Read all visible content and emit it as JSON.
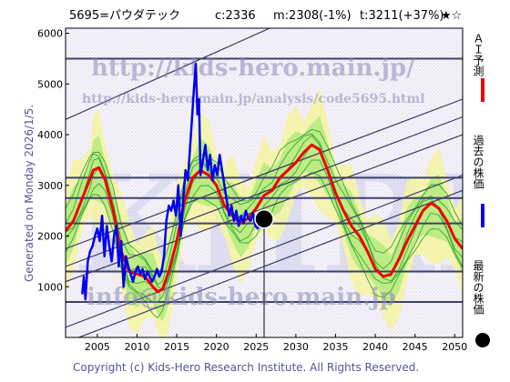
{
  "header": {
    "stock": "5695=パウダテック",
    "current": "c:2336",
    "mean": "m:2308(-1%)",
    "target": "t:3211(+37%)",
    "stars": "★☆"
  },
  "generated": "Generated on Monday 2026/1/5.",
  "copyright": "Copyright (c) Kids-Hero Research Institute. All Rights Reserved.",
  "watermarks": {
    "url1": "http://kids-hero.main.jp/",
    "url2": "http://kids-hero.main.jp/analysis/code5695.html",
    "email": "info@kids-hero.main.jp",
    "big": "KHRI"
  },
  "legend": [
    {
      "label": "ＡＩ予測",
      "color": "#ee0000",
      "kind": "line"
    },
    {
      "label": "過去の株価",
      "color": "#0000ee",
      "kind": "line"
    },
    {
      "label": "最新の株価",
      "color": "#000000",
      "kind": "dot"
    }
  ],
  "chart_data": {
    "type": "line",
    "xlim": [
      2001,
      2051
    ],
    "ylim": [
      0,
      6100
    ],
    "x_ticks": [
      2005,
      2010,
      2015,
      2020,
      2025,
      2030,
      2035,
      2040,
      2045,
      2050
    ],
    "y_ticks": [
      1000,
      2000,
      3000,
      4000,
      5000,
      6000
    ],
    "horizontal_lines": [
      5500,
      3150,
      2750,
      2250,
      1300,
      700
    ],
    "latest": {
      "x": 2026.0,
      "y": 2336
    },
    "series": [
      {
        "name": "AI予測",
        "color": "#ee0000",
        "x": [
          2001,
          2002,
          2003,
          2004,
          2004.5,
          2005.2,
          2006,
          2007,
          2008,
          2009,
          2010,
          2011,
          2012,
          2012.6,
          2013.2,
          2014,
          2015,
          2016,
          2017,
          2018,
          2019,
          2020,
          2021,
          2022,
          2023,
          2024,
          2025,
          2026,
          2027,
          2028,
          2029,
          2030,
          2031,
          2032,
          2033,
          2034,
          2035,
          2036,
          2037,
          2038,
          2039,
          2040,
          2041,
          2042,
          2043,
          2044,
          2045,
          2046,
          2047,
          2048,
          2049,
          2050,
          2051
        ],
        "y": [
          2100,
          2300,
          2700,
          3100,
          3300,
          3350,
          3100,
          2500,
          1700,
          1300,
          1250,
          1200,
          1000,
          900,
          950,
          1300,
          1900,
          2700,
          3150,
          3300,
          3200,
          3000,
          2600,
          2400,
          2250,
          2350,
          2550,
          2800,
          2900,
          3150,
          3300,
          3450,
          3650,
          3800,
          3700,
          3300,
          2850,
          2500,
          2200,
          2000,
          1700,
          1350,
          1200,
          1250,
          1550,
          1900,
          2200,
          2500,
          2650,
          2550,
          2300,
          1950,
          1750
        ]
      },
      {
        "name": "過去の株価",
        "color": "#0000ee",
        "x": [
          2003.1,
          2003.3,
          2003.5,
          2003.8,
          2004.1,
          2004.4,
          2004.7,
          2005.0,
          2005.3,
          2005.6,
          2005.9,
          2006.2,
          2006.5,
          2006.8,
          2007.1,
          2007.4,
          2007.7,
          2008.0,
          2008.3,
          2008.6,
          2008.9,
          2009.2,
          2009.5,
          2009.8,
          2010.1,
          2010.4,
          2010.7,
          2011.0,
          2011.3,
          2011.6,
          2011.9,
          2012.2,
          2012.5,
          2012.8,
          2013.1,
          2013.4,
          2013.7,
          2014.0,
          2014.3,
          2014.6,
          2014.9,
          2015.2,
          2015.5,
          2015.8,
          2016.1,
          2016.4,
          2016.7,
          2017.0,
          2017.2,
          2017.4,
          2017.6,
          2017.8,
          2018.0,
          2018.3,
          2018.6,
          2018.9,
          2019.2,
          2019.5,
          2019.8,
          2020.1,
          2020.4,
          2020.7,
          2021.0,
          2021.3,
          2021.6,
          2021.9,
          2022.2,
          2022.5,
          2022.8,
          2023.1,
          2023.4,
          2023.7,
          2024.0,
          2024.3,
          2024.6,
          2024.9,
          2025.2,
          2025.5,
          2025.8
        ],
        "y": [
          850,
          1200,
          750,
          1500,
          1700,
          1800,
          2000,
          2150,
          1900,
          2400,
          1600,
          2200,
          1800,
          1500,
          2000,
          2200,
          1400,
          1900,
          1000,
          1600,
          1400,
          1250,
          1100,
          1300,
          1400,
          1250,
          1350,
          1150,
          1300,
          1200,
          1100,
          1200,
          1350,
          1200,
          1300,
          1600,
          2300,
          2600,
          2500,
          2700,
          2400,
          3000,
          2000,
          2700,
          3300,
          3100,
          3800,
          4500,
          5000,
          5400,
          4400,
          4700,
          3200,
          3500,
          3800,
          3300,
          3600,
          3100,
          3400,
          3200,
          3600,
          3300,
          3000,
          2700,
          2400,
          2600,
          2300,
          2500,
          2200,
          2400,
          2250,
          2500,
          2350,
          2300,
          2450,
          2200,
          2150,
          2300,
          2336
        ]
      }
    ]
  }
}
